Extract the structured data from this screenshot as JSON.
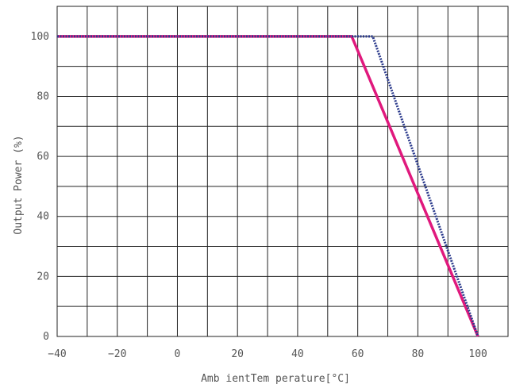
{
  "chart_data": {
    "type": "line",
    "title": "",
    "xlabel": "Amb ientTem perature[°C]",
    "ylabel": "Output Power (%)",
    "xlim": [
      -40,
      110
    ],
    "ylim": [
      0,
      110
    ],
    "x_ticks": [
      -40,
      -20,
      0,
      20,
      40,
      60,
      80,
      100
    ],
    "y_ticks": [
      0,
      20,
      40,
      60,
      80,
      100
    ],
    "x_grid_step": 10,
    "y_grid_step": 10,
    "grid": true,
    "legend": "none",
    "series": [
      {
        "style": "solid",
        "color": "#e0197d",
        "x": [
          -40,
          58,
          100
        ],
        "y": [
          100,
          100,
          0
        ]
      },
      {
        "style": "dotted",
        "color": "#2b3a8c",
        "x": [
          -40,
          65,
          100
        ],
        "y": [
          100,
          100,
          0
        ]
      }
    ]
  }
}
